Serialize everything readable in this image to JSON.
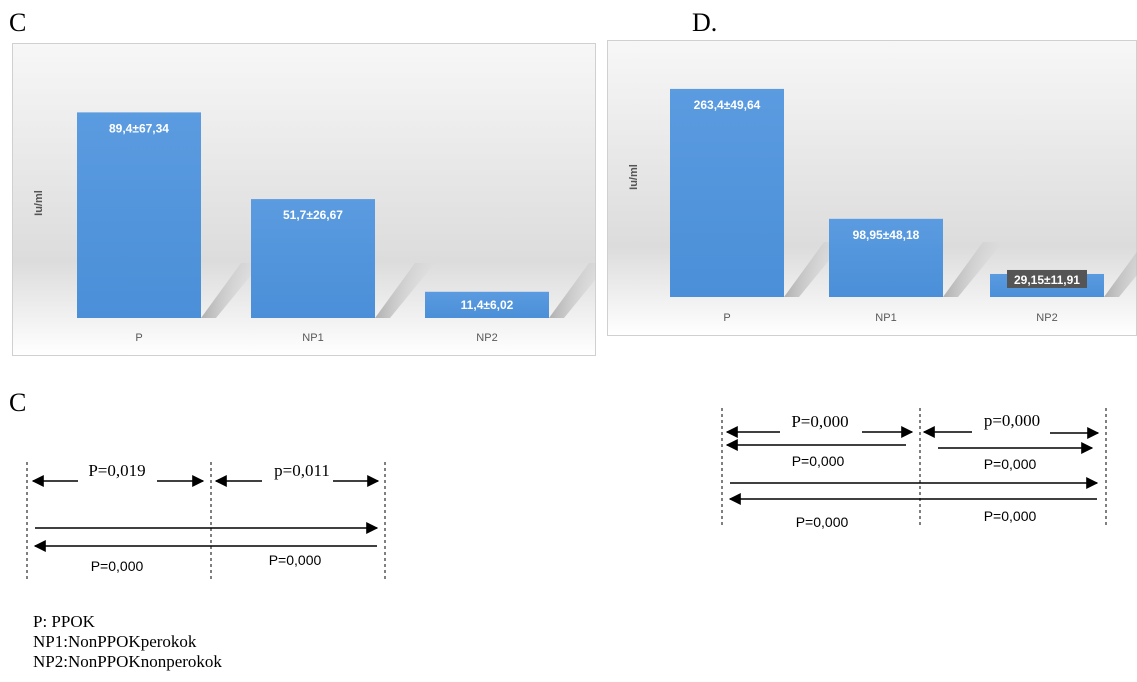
{
  "panels": {
    "c_chart_letter": "C",
    "d_chart_letter": "D.",
    "c_sig_letter": "C"
  },
  "chart_data": [
    {
      "type": "bar",
      "panel": "C",
      "ylabel": "Iu/ml",
      "categories": [
        "P",
        "NP1",
        "NP2"
      ],
      "values": [
        89.4,
        51.7,
        11.4
      ],
      "sd": [
        67.34,
        26.67,
        6.02
      ],
      "data_labels": [
        "89,4±67,34",
        "51,7±26,67",
        "11,4±6,02"
      ],
      "ylim": [
        0,
        100
      ],
      "bar_color": "#4a8fd8",
      "grid": false,
      "legend": "none"
    },
    {
      "type": "bar",
      "panel": "D",
      "ylabel": "Iu/ml",
      "categories": [
        "P",
        "NP1",
        "NP2"
      ],
      "values": [
        263.4,
        98.95,
        29.15
      ],
      "sd": [
        49.64,
        48.18,
        11.91
      ],
      "data_labels": [
        "263,4±49,64",
        "98,95±48,18",
        "29,15±11,91"
      ],
      "ylim": [
        0,
        300
      ],
      "bar_color": "#4a8fd8",
      "grid": false,
      "legend": "none"
    }
  ],
  "significance": {
    "c": {
      "p_left": "P=0,019",
      "p_right": "p=0,011",
      "p_bottom_left": "P=0,000",
      "p_bottom_right": "P=0,000"
    },
    "d": {
      "p_top_left": "P=0,000",
      "p_top_right": "p=0,000",
      "p_mid_left": "P=0,000",
      "p_mid_right": "P=0,000",
      "p_bottom_left": "P=0,000",
      "p_bottom_right": "P=0,000"
    }
  },
  "legend": [
    "P: PPOK",
    "NP1:NonPPOKperokok",
    "NP2:NonPPOKnonperokok"
  ]
}
